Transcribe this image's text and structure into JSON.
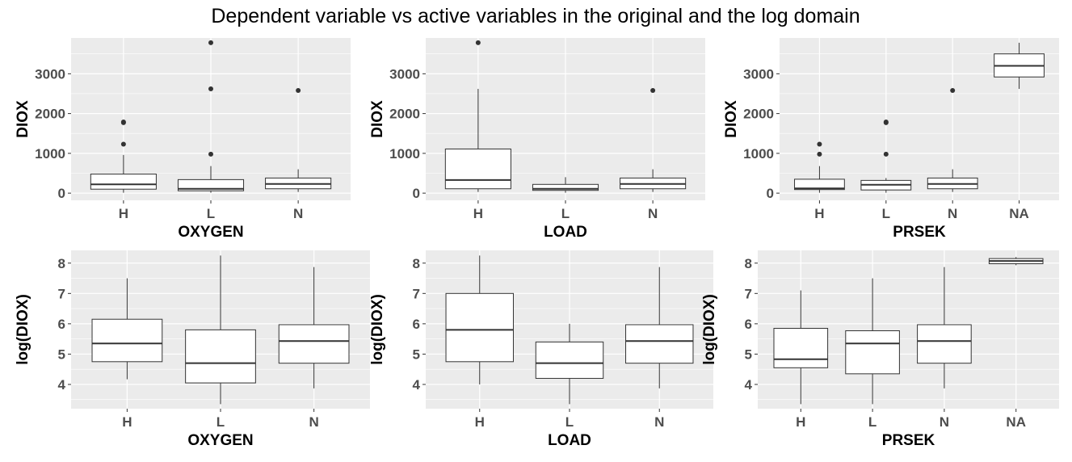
{
  "figure": {
    "title": "Dependent variable vs active variables in the original and the log domain"
  },
  "colors": {
    "panel_bg": "#ebebeb",
    "grid_major": "#ffffff",
    "box_fill": "#ffffff",
    "box_stroke": "#333333",
    "outlier": "#333333",
    "tick_text": "#4d4d4d",
    "axis_text": "#000000"
  },
  "chart_data": [
    {
      "type": "boxplot",
      "xlabel": "OXYGEN",
      "ylabel": "DIOX",
      "categories": [
        "H",
        "L",
        "N"
      ],
      "ylim": [
        -180,
        3900
      ],
      "yticks": [
        0,
        1000,
        2000,
        3000
      ],
      "grid": true,
      "boxes": [
        {
          "q1": 100,
          "median": 220,
          "q3": 480,
          "whisker_low": 10,
          "whisker_high": 960,
          "outliers": [
            1230,
            1770,
            1790
          ]
        },
        {
          "q1": 60,
          "median": 110,
          "q3": 340,
          "whisker_low": 10,
          "whisker_high": 680,
          "outliers": [
            980,
            2620,
            3780
          ]
        },
        {
          "q1": 110,
          "median": 230,
          "q3": 380,
          "whisker_low": 30,
          "whisker_high": 600,
          "outliers": [
            2580
          ]
        }
      ]
    },
    {
      "type": "boxplot",
      "xlabel": "LOAD",
      "ylabel": "DIOX",
      "categories": [
        "H",
        "L",
        "N"
      ],
      "ylim": [
        -180,
        3900
      ],
      "yticks": [
        0,
        1000,
        2000,
        3000
      ],
      "grid": true,
      "boxes": [
        {
          "q1": 110,
          "median": 330,
          "q3": 1110,
          "whisker_low": 30,
          "whisker_high": 2620,
          "outliers": [
            3780
          ]
        },
        {
          "q1": 70,
          "median": 110,
          "q3": 220,
          "whisker_low": 10,
          "whisker_high": 400,
          "outliers": []
        },
        {
          "q1": 110,
          "median": 230,
          "q3": 380,
          "whisker_low": 30,
          "whisker_high": 600,
          "outliers": [
            2580
          ]
        }
      ]
    },
    {
      "type": "boxplot",
      "xlabel": "PRSEK",
      "ylabel": "DIOX",
      "categories": [
        "H",
        "L",
        "N",
        "NA"
      ],
      "ylim": [
        -180,
        3900
      ],
      "yticks": [
        0,
        1000,
        2000,
        3000
      ],
      "grid": true,
      "boxes": [
        {
          "q1": 90,
          "median": 120,
          "q3": 350,
          "whisker_low": 10,
          "whisker_high": 680,
          "outliers": [
            980,
            1230
          ]
        },
        {
          "q1": 80,
          "median": 210,
          "q3": 320,
          "whisker_low": 10,
          "whisker_high": 380,
          "outliers": [
            980,
            1770,
            1790
          ]
        },
        {
          "q1": 110,
          "median": 230,
          "q3": 380,
          "whisker_low": 30,
          "whisker_high": 600,
          "outliers": [
            2580
          ]
        },
        {
          "q1": 2920,
          "median": 3200,
          "q3": 3500,
          "whisker_low": 2620,
          "whisker_high": 3780,
          "outliers": []
        }
      ]
    },
    {
      "type": "boxplot",
      "xlabel": "OXYGEN",
      "ylabel": "log(DIOX)",
      "categories": [
        "H",
        "L",
        "N"
      ],
      "ylim": [
        3.2,
        8.42
      ],
      "yticks": [
        4,
        5,
        6,
        7,
        8
      ],
      "grid": true,
      "boxes": [
        {
          "q1": 4.75,
          "median": 5.35,
          "q3": 6.15,
          "whisker_low": 4.17,
          "whisker_high": 7.5,
          "outliers": []
        },
        {
          "q1": 4.05,
          "median": 4.7,
          "q3": 5.8,
          "whisker_low": 3.35,
          "whisker_high": 8.25,
          "outliers": []
        },
        {
          "q1": 4.7,
          "median": 5.43,
          "q3": 5.97,
          "whisker_low": 3.87,
          "whisker_high": 7.87,
          "outliers": []
        }
      ]
    },
    {
      "type": "boxplot",
      "xlabel": "LOAD",
      "ylabel": "log(DIOX)",
      "categories": [
        "H",
        "L",
        "N"
      ],
      "ylim": [
        3.2,
        8.42
      ],
      "yticks": [
        4,
        5,
        6,
        7,
        8
      ],
      "grid": true,
      "boxes": [
        {
          "q1": 4.75,
          "median": 5.8,
          "q3": 7.0,
          "whisker_low": 4.0,
          "whisker_high": 8.25,
          "outliers": []
        },
        {
          "q1": 4.2,
          "median": 4.7,
          "q3": 5.4,
          "whisker_low": 3.35,
          "whisker_high": 6.0,
          "outliers": []
        },
        {
          "q1": 4.7,
          "median": 5.43,
          "q3": 5.97,
          "whisker_low": 3.87,
          "whisker_high": 7.87,
          "outliers": []
        }
      ]
    },
    {
      "type": "boxplot",
      "xlabel": "PRSEK",
      "ylabel": "log(DIOX)",
      "categories": [
        "H",
        "L",
        "N",
        "NA"
      ],
      "ylim": [
        3.2,
        8.42
      ],
      "yticks": [
        4,
        5,
        6,
        7,
        8
      ],
      "grid": true,
      "boxes": [
        {
          "q1": 4.55,
          "median": 4.83,
          "q3": 5.85,
          "whisker_low": 3.35,
          "whisker_high": 7.1,
          "outliers": []
        },
        {
          "q1": 4.35,
          "median": 5.35,
          "q3": 5.77,
          "whisker_low": 3.35,
          "whisker_high": 7.5,
          "outliers": []
        },
        {
          "q1": 4.7,
          "median": 5.43,
          "q3": 5.97,
          "whisker_low": 3.87,
          "whisker_high": 7.87,
          "outliers": []
        },
        {
          "q1": 7.98,
          "median": 8.07,
          "q3": 8.15,
          "whisker_low": 7.93,
          "whisker_high": 8.2,
          "outliers": []
        }
      ]
    }
  ]
}
